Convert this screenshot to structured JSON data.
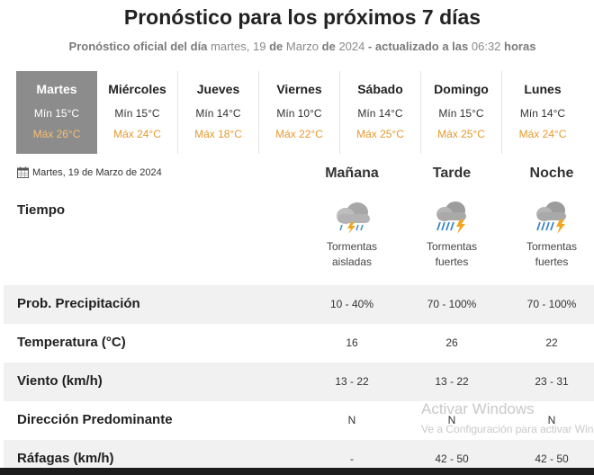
{
  "header": {
    "title": "Pronóstico para los próximos 7 días",
    "sub_bold1": "Pronóstico oficial del día",
    "sub_weekday": "martes, 19",
    "sub_bold2": "de",
    "sub_month": "Marzo",
    "sub_bold3": "de",
    "sub_year": "2024",
    "sub_bold4": "- actualizado a las",
    "sub_time": "06:32",
    "sub_bold5": "horas"
  },
  "days": [
    {
      "name": "Martes",
      "min": "Mín 15°C",
      "max": "Máx 26°C",
      "active": true
    },
    {
      "name": "Miércoles",
      "min": "Mín 15°C",
      "max": "Máx 24°C"
    },
    {
      "name": "Jueves",
      "min": "Mín 14°C",
      "max": "Máx 18°C"
    },
    {
      "name": "Viernes",
      "min": "Mín 10°C",
      "max": "Máx 22°C"
    },
    {
      "name": "Sábado",
      "min": "Mín 14°C",
      "max": "Máx 25°C"
    },
    {
      "name": "Domingo",
      "min": "Mín 15°C",
      "max": "Máx 25°C"
    },
    {
      "name": "Lunes",
      "min": "Mín 14°C",
      "max": "Máx 24°C"
    }
  ],
  "detail": {
    "date": "Martes, 19 de Marzo de 2024",
    "columns": [
      "Mañana",
      "Tarde",
      "Noche"
    ],
    "tiempo_label": "Tiempo",
    "weather": [
      {
        "line1": "Tormentas",
        "line2": "aisladas",
        "icon": "storm-cloud-icon"
      },
      {
        "line1": "Tormentas",
        "line2": "fuertes",
        "icon": "strong-storm-icon"
      },
      {
        "line1": "Tormentas",
        "line2": "fuertes",
        "icon": "strong-storm-icon"
      }
    ],
    "rows": [
      {
        "label": "Prob. Precipitación",
        "values": [
          "10 - 40%",
          "70 - 100%",
          "70 - 100%"
        ]
      },
      {
        "label": "Temperatura (°C)",
        "values": [
          "16",
          "26",
          "22"
        ]
      },
      {
        "label": "Viento (km/h)",
        "values": [
          "13 - 22",
          "13 - 22",
          "23 - 31"
        ]
      },
      {
        "label": "Dirección Predominante",
        "values": [
          "N",
          "N",
          "N"
        ]
      },
      {
        "label": "Ráfagas (km/h)",
        "values": [
          "-",
          "42 - 50",
          "42 - 50"
        ]
      }
    ]
  },
  "watermark": {
    "line1": "Activar Windows",
    "line2": "Ve a Configuración para activar Windows."
  },
  "colors": {
    "active_day": "#8c8c8c",
    "max_temp": "#e49a2f",
    "row_shade": "#f1f1f1"
  }
}
